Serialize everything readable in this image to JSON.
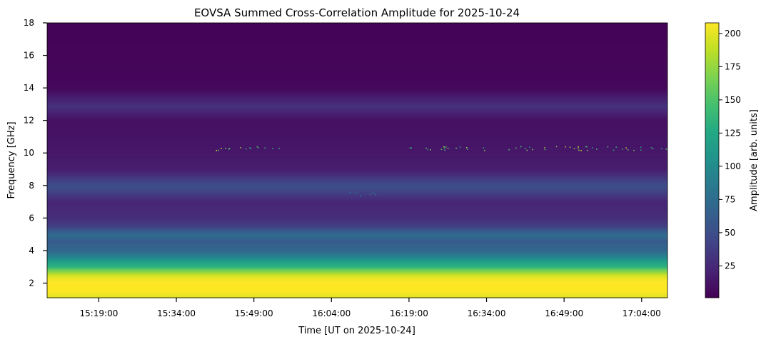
{
  "chart_data": {
    "type": "heatmap",
    "title": "EOVSA Summed Cross-Correlation Amplitude for 2025-10-24",
    "xlabel": "Time [UT on 2025-10-24]",
    "ylabel": "Frequency [GHz]",
    "colorbar_label": "Amplitude [arb. units]",
    "colormap": "viridis",
    "x_range": [
      "15:09:00",
      "17:09:00"
    ],
    "x_ticks": [
      "15:19:00",
      "15:34:00",
      "15:49:00",
      "16:04:00",
      "16:19:00",
      "16:34:00",
      "16:49:00",
      "17:04:00"
    ],
    "ylim": [
      1.1,
      18
    ],
    "y_ticks": [
      2,
      4,
      6,
      8,
      10,
      12,
      14,
      16,
      18
    ],
    "color_range": [
      1,
      208
    ],
    "colorbar_ticks": [
      25,
      50,
      75,
      100,
      125,
      150,
      175,
      200
    ],
    "frequency_profile": [
      {
        "freq_ghz": 1.2,
        "amplitude": 200
      },
      {
        "freq_ghz": 1.6,
        "amplitude": 210
      },
      {
        "freq_ghz": 2.0,
        "amplitude": 210
      },
      {
        "freq_ghz": 2.4,
        "amplitude": 200
      },
      {
        "freq_ghz": 2.8,
        "amplitude": 165
      },
      {
        "freq_ghz": 3.0,
        "amplitude": 135
      },
      {
        "freq_ghz": 3.3,
        "amplitude": 120
      },
      {
        "freq_ghz": 3.6,
        "amplitude": 95
      },
      {
        "freq_ghz": 4.0,
        "amplitude": 70
      },
      {
        "freq_ghz": 4.6,
        "amplitude": 60
      },
      {
        "freq_ghz": 5.0,
        "amplitude": 75
      },
      {
        "freq_ghz": 5.5,
        "amplitude": 40
      },
      {
        "freq_ghz": 6.0,
        "amplitude": 28
      },
      {
        "freq_ghz": 7.0,
        "amplitude": 22
      },
      {
        "freq_ghz": 7.6,
        "amplitude": 40
      },
      {
        "freq_ghz": 8.0,
        "amplitude": 50
      },
      {
        "freq_ghz": 9.0,
        "amplitude": 18
      },
      {
        "freq_ghz": 10.0,
        "amplitude": 14
      },
      {
        "freq_ghz": 12.0,
        "amplitude": 10
      },
      {
        "freq_ghz": 12.9,
        "amplitude": 30
      },
      {
        "freq_ghz": 14.0,
        "amplitude": 5
      },
      {
        "freq_ghz": 18.0,
        "amplitude": 3
      }
    ],
    "rfi_bands_ghz": [
      {
        "freq_ghz": 10.3,
        "t_start": "15:41:00",
        "t_end": "15:54:00",
        "amplitude": 200
      },
      {
        "freq_ghz": 10.3,
        "t_start": "16:19:00",
        "t_end": "16:34:00",
        "amplitude": 180
      },
      {
        "freq_ghz": 10.3,
        "t_start": "16:38:00",
        "t_end": "17:09:00",
        "amplitude": 200
      },
      {
        "freq_ghz": 7.5,
        "t_start": "16:07:00",
        "t_end": "16:13:00",
        "amplitude": 130
      }
    ]
  }
}
